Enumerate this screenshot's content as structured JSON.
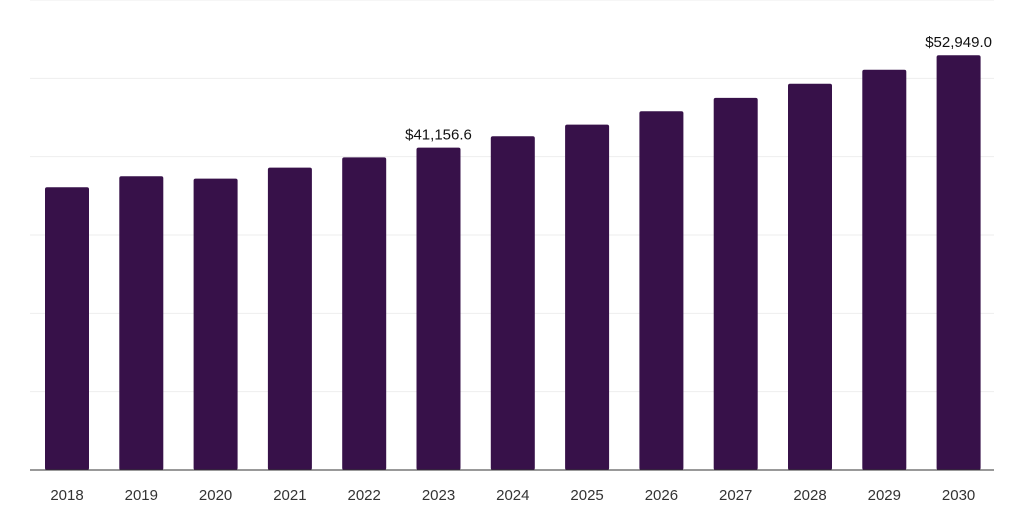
{
  "chart_data": {
    "type": "bar",
    "categories": [
      "2018",
      "2019",
      "2020",
      "2021",
      "2022",
      "2023",
      "2024",
      "2025",
      "2026",
      "2027",
      "2028",
      "2029",
      "2030"
    ],
    "values": [
      36100,
      37500,
      37200,
      38600,
      39900,
      41156.6,
      42600,
      44100,
      45800,
      47500,
      49300,
      51100,
      52949.0
    ],
    "data_labels": [
      {
        "index": 5,
        "text": "$41,156.6"
      },
      {
        "index": 12,
        "text": "$52,949.0"
      }
    ],
    "title": "",
    "xlabel": "",
    "ylabel": "",
    "ylim": [
      0,
      60000
    ],
    "grid": true,
    "legend": "none",
    "colors": {
      "bar": "#371149",
      "grid": "#eeeeee",
      "axis": "#333333"
    }
  }
}
